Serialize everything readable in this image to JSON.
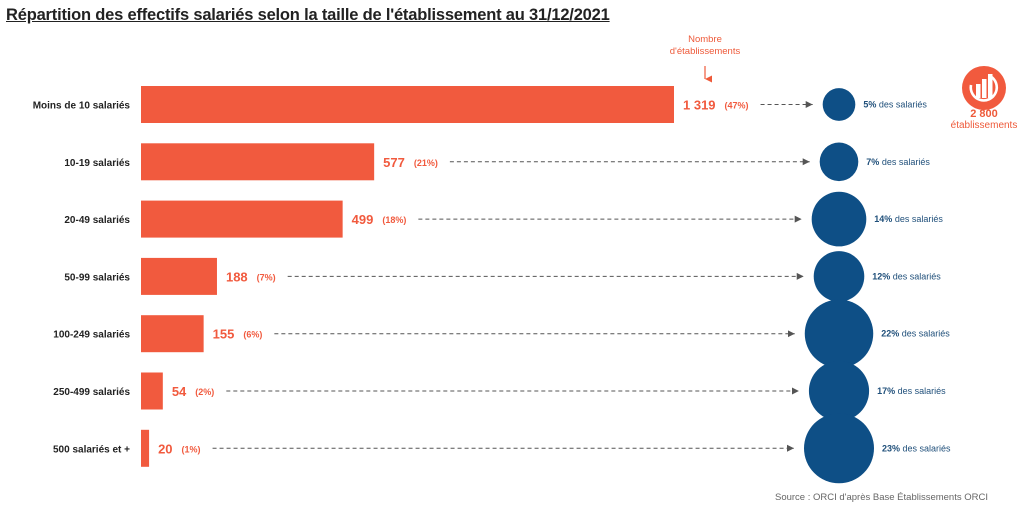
{
  "title": "Répartition des effectifs salariés selon la taille de l'établissement au 31/12/2021",
  "callout": {
    "line1": "Nombre",
    "line2": "d'établissements"
  },
  "total": {
    "value": "2 800",
    "label": "établissements"
  },
  "source": "Source : ORCI d'après Base Établissements ORCI",
  "colors": {
    "bar": "#f15a3e",
    "bubble": "#0e4f86",
    "bubble_text": "#1f4f7a",
    "accent": "#ee5a3a"
  },
  "icon": "orci-logo-icon",
  "chart_data": {
    "type": "bar",
    "orientation": "horizontal",
    "categories": [
      "Moins de 10 salariés",
      "10-19 salariés",
      "20-49 salariés",
      "50-99 salariés",
      "100-249 salariés",
      "250-499 salariés",
      "500 salariés et +"
    ],
    "values": [
      1319,
      577,
      499,
      188,
      155,
      54,
      20
    ],
    "value_labels": [
      "1 319",
      "577",
      "499",
      "188",
      "155",
      "54",
      "20"
    ],
    "share_labels": [
      "(47%)",
      "(21%)",
      "(18%)",
      "(7%)",
      "(6%)",
      "(2%)",
      "(1%)"
    ],
    "employee_share": [
      5,
      7,
      14,
      12,
      22,
      17,
      23
    ],
    "employee_share_labels": [
      "5%",
      "7%",
      "14%",
      "12%",
      "22%",
      "17%",
      "23%"
    ],
    "employee_share_suffix": " des salariés"
  }
}
